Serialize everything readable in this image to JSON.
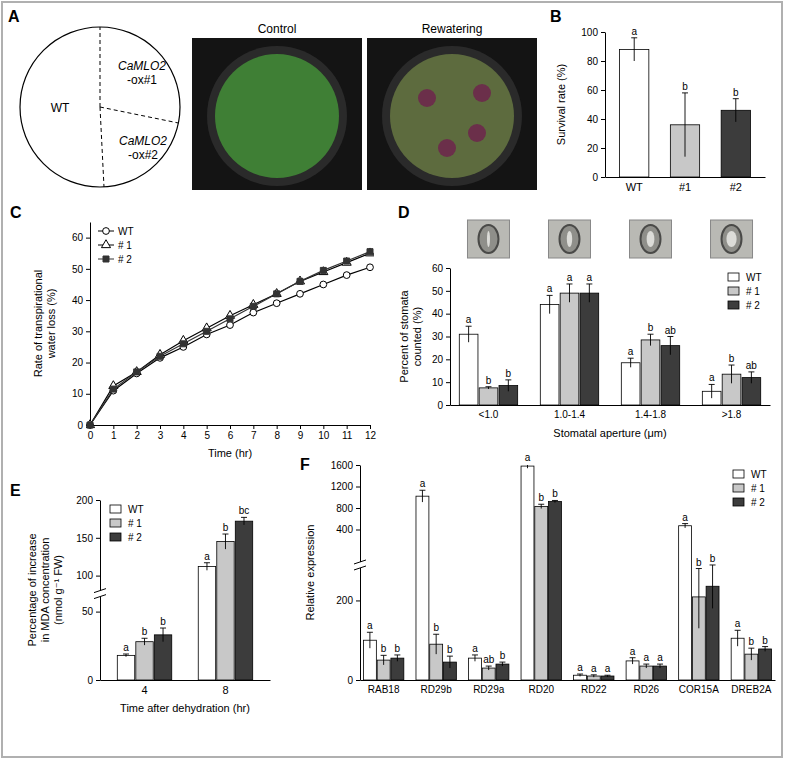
{
  "chart_data": [
    {
      "type": "bar",
      "title": "B",
      "categories": [
        "WT",
        "#1",
        "#2"
      ],
      "values": [
        88,
        36,
        46
      ],
      "errors": [
        8,
        22,
        8
      ],
      "letters": [
        "a",
        "b",
        "b"
      ],
      "colors": [
        "#ffffff",
        "#c8c8c8",
        "#3c3c3c"
      ],
      "ylabel": "Survival rate (%)",
      "ylim": [
        0,
        100
      ],
      "yticks": [
        0,
        20,
        40,
        60,
        80,
        100
      ]
    },
    {
      "type": "line",
      "title": "C",
      "x": [
        0,
        1,
        2,
        3,
        4,
        5,
        6,
        7,
        8,
        9,
        10,
        11,
        12
      ],
      "series": [
        {
          "name": "WT",
          "color": "#000000",
          "marker": "circle-open",
          "values": [
            0,
            11,
            16.5,
            21.5,
            25,
            29,
            32,
            36,
            39,
            42,
            45,
            48,
            50.5
          ]
        },
        {
          "name": "# 1",
          "color": "#000000",
          "marker": "triangle-open",
          "values": [
            0,
            12.5,
            17,
            22.5,
            27,
            31,
            35,
            38.5,
            42,
            46,
            49,
            52,
            55
          ]
        },
        {
          "name": "# 2",
          "color": "#333333",
          "marker": "square",
          "values": [
            0,
            11.5,
            17,
            22,
            26,
            30,
            34,
            38,
            42,
            46,
            49.5,
            52.5,
            55.5
          ]
        }
      ],
      "xlabel": "Time (hr)",
      "ylabel": [
        "Rate of transpirational",
        "water loss (%)"
      ],
      "xlim": [
        0,
        12
      ],
      "xticks": [
        0,
        1,
        2,
        3,
        4,
        5,
        6,
        7,
        8,
        9,
        10,
        11,
        12
      ],
      "ylim": [
        0,
        65
      ],
      "yticks": [
        0,
        10,
        20,
        30,
        40,
        50,
        60
      ],
      "legend": "upper left"
    },
    {
      "type": "bar",
      "title": "D",
      "categories": [
        "<1.0",
        "1.0-1.4",
        "1.4-1.8",
        ">1.8"
      ],
      "series": [
        {
          "name": "WT",
          "color": "#ffffff",
          "values": [
            31,
            44,
            18.5,
            6
          ],
          "errors": [
            3.5,
            4,
            2,
            3
          ],
          "letters": [
            "a",
            "a",
            "a",
            "a"
          ]
        },
        {
          "name": "# 1",
          "color": "#c8c8c8",
          "values": [
            7.5,
            49,
            28.5,
            13.5
          ],
          "errors": [
            0.5,
            4,
            2.5,
            4
          ],
          "letters": [
            "b",
            "a",
            "b",
            "b"
          ]
        },
        {
          "name": "# 2",
          "color": "#3c3c3c",
          "values": [
            8.5,
            49,
            26,
            12
          ],
          "errors": [
            2.5,
            4,
            4,
            2.5
          ],
          "letters": [
            "b",
            "a",
            "ab",
            "ab"
          ]
        }
      ],
      "xlabel": "Stomatal aperture (μm)",
      "ylabel": [
        "Percent of stomata",
        "counted (%)"
      ],
      "ylim": [
        0,
        60
      ],
      "yticks": [
        0,
        10,
        20,
        30,
        40,
        50,
        60
      ],
      "legend": "upper right"
    },
    {
      "type": "bar",
      "title": "E",
      "categories": [
        "4",
        "8"
      ],
      "series": [
        {
          "name": "WT",
          "color": "#ffffff",
          "values": [
            18,
            112
          ],
          "errors": [
            1,
            5
          ],
          "letters": [
            "a",
            "a"
          ]
        },
        {
          "name": "# 1",
          "color": "#c8c8c8",
          "values": [
            28,
            145
          ],
          "errors": [
            2.5,
            10
          ],
          "letters": [
            "b",
            "b"
          ]
        },
        {
          "name": "# 2",
          "color": "#3c3c3c",
          "values": [
            33,
            172
          ],
          "errors": [
            5,
            5
          ],
          "letters": [
            "b",
            "bc"
          ]
        }
      ],
      "xlabel": "Time after dehydration (hr)",
      "ylabel": [
        "Percentage of increase",
        "in MDA concentration",
        "(nmol g⁻¹ FW)"
      ],
      "ylim": [
        0,
        200
      ],
      "yticks": [
        0,
        50,
        100,
        150,
        200
      ],
      "y_break": [
        50,
        100
      ],
      "legend": "upper left"
    },
    {
      "type": "bar",
      "title": "F",
      "categories": [
        "RAB18",
        "RD29b",
        "RD29a",
        "RD20",
        "RD22",
        "RD26",
        "COR15A",
        "DREB2A"
      ],
      "series": [
        {
          "name": "WT",
          "color": "#ffffff",
          "values": [
            100,
            1020,
            55,
            1580,
            12,
            48,
            470,
            105
          ],
          "errors": [
            20,
            110,
            8,
            40,
            3,
            8,
            40,
            20
          ],
          "letters": [
            "a",
            "a",
            "a",
            "a",
            "a",
            "a",
            "a",
            "a"
          ]
        },
        {
          "name": "# 1",
          "color": "#c8c8c8",
          "values": [
            50,
            90,
            30,
            830,
            10,
            35,
            210,
            65
          ],
          "errors": [
            12,
            25,
            5,
            40,
            3,
            5,
            80,
            15
          ],
          "letters": [
            "b",
            "b",
            "ab",
            "b",
            "a",
            "a",
            "b",
            "b"
          ]
        },
        {
          "name": "# 2",
          "color": "#3c3c3c",
          "values": [
            55,
            45,
            40,
            920,
            10,
            35,
            240,
            78
          ],
          "errors": [
            8,
            15,
            5,
            20,
            2,
            5,
            60,
            6
          ],
          "letters": [
            "b",
            "b",
            "b",
            "b",
            "a",
            "a",
            "b",
            "b"
          ]
        }
      ],
      "ylabel": "Relative expression",
      "ylim": [
        0,
        1600
      ],
      "yticks": [
        0,
        200,
        400,
        800,
        1200,
        1600
      ],
      "y_break": [
        200,
        400
      ],
      "legend": "upper right"
    }
  ],
  "diagram": {
    "title": "A",
    "sections": [
      [
        "WT"
      ],
      [
        "CaMLO2",
        "-ox#1"
      ],
      [
        "CaMLO2",
        "-ox#2"
      ]
    ],
    "photos": [
      "Control",
      "Rewatering"
    ]
  }
}
